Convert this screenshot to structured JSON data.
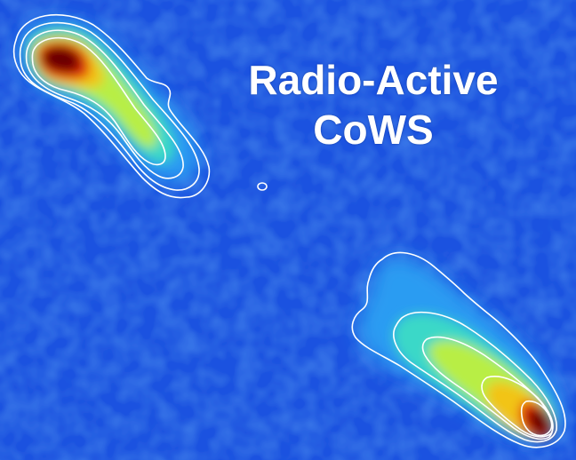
{
  "title": {
    "line1": "Radio-Active",
    "line2": "CoWS"
  },
  "image": {
    "subject": "radio-map-two-lobes-with-contours",
    "colormap": [
      "#0a2aa8",
      "#1f5ae8",
      "#2fa8f0",
      "#40e0c0",
      "#c8f040",
      "#f0c020",
      "#e83010",
      "#6a0000"
    ],
    "background_color": "#1a52e0",
    "contour_color": "#ffffff"
  }
}
